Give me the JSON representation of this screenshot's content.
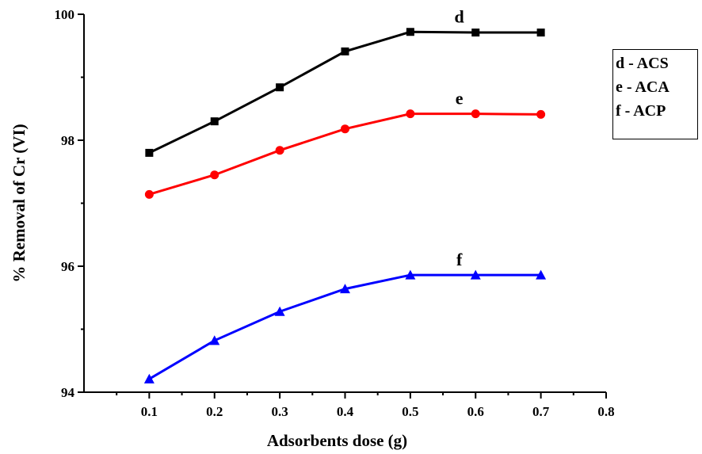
{
  "chart_data": {
    "type": "line",
    "xlabel": "Adsorbents dose (g)",
    "ylabel": "% Removal of Cr (VI)",
    "xlim": [
      0,
      0.8
    ],
    "ylim": [
      94,
      100
    ],
    "x_ticks": [
      "0.1",
      "0.2",
      "0.3",
      "0.4",
      "0.5",
      "0.6",
      "0.7",
      "0.8"
    ],
    "y_ticks": [
      "94",
      "96",
      "98",
      "100"
    ],
    "x": [
      0.1,
      0.2,
      0.3,
      0.4,
      0.5,
      0.6,
      0.7
    ],
    "series": [
      {
        "name": "d",
        "color": "#000000",
        "marker": "square",
        "values": [
          97.8,
          98.3,
          98.84,
          99.41,
          99.72,
          99.71,
          99.71
        ]
      },
      {
        "name": "e",
        "color": "#ff0000",
        "marker": "circle",
        "values": [
          97.14,
          97.45,
          97.84,
          98.18,
          98.42,
          98.42,
          98.41
        ]
      },
      {
        "name": "f",
        "color": "#0000ff",
        "marker": "triangle",
        "values": [
          94.21,
          94.82,
          95.28,
          95.64,
          95.86,
          95.86,
          95.86
        ]
      }
    ],
    "legend": {
      "position": "right",
      "entries": [
        "d - ACS",
        "e - ACA",
        "f - ACP"
      ]
    },
    "grid": false
  }
}
